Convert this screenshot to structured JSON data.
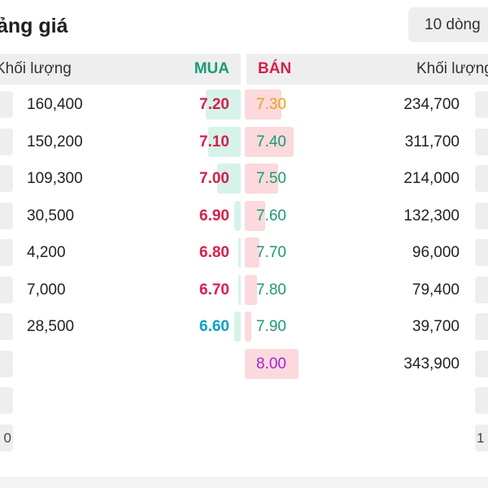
{
  "title": "ảng giá",
  "rows_selector": {
    "label": "10 dòng"
  },
  "header": {
    "bid_volume": "Khối lượng",
    "bid": "MUA",
    "ask": "BÁN",
    "ask_volume": "Khối lượng"
  },
  "colors": {
    "ceiling": "#a326d6",
    "up": "#1a9b73",
    "down": "#d81e4a",
    "reference": "#e8a317",
    "floor": "#0aa0c8"
  },
  "bids": [
    {
      "volume": "160,400",
      "price": "7.20",
      "level": "down",
      "depth": 0.465
    },
    {
      "volume": "150,200",
      "price": "7.10",
      "level": "down",
      "depth": 0.436
    },
    {
      "volume": "109,300",
      "price": "7.00",
      "level": "down",
      "depth": 0.317
    },
    {
      "volume": "30,500",
      "price": "6.90",
      "level": "down",
      "depth": 0.089
    },
    {
      "volume": "4,200",
      "price": "6.80",
      "level": "down",
      "depth": 0.012
    },
    {
      "volume": "7,000",
      "price": "6.70",
      "level": "down",
      "depth": 0.02
    },
    {
      "volume": "28,500",
      "price": "6.60",
      "level": "floor",
      "depth": 0.083
    }
  ],
  "asks": [
    {
      "volume": "234,700",
      "price": "7.30",
      "level": "reference",
      "depth": 0.682
    },
    {
      "volume": "311,700",
      "price": "7.40",
      "level": "up",
      "depth": 0.906
    },
    {
      "volume": "214,000",
      "price": "7.50",
      "level": "up",
      "depth": 0.622
    },
    {
      "volume": "132,300",
      "price": "7.60",
      "level": "up",
      "depth": 0.385
    },
    {
      "volume": "96,000",
      "price": "7.70",
      "level": "up",
      "depth": 0.279
    },
    {
      "volume": "79,400",
      "price": "7.80",
      "level": "up",
      "depth": 0.231
    },
    {
      "volume": "39,700",
      "price": "7.90",
      "level": "up",
      "depth": 0.115
    },
    {
      "volume": "343,900",
      "price": "8.00",
      "level": "ceiling",
      "depth": 1.0
    }
  ],
  "edge_cells": {
    "left": [
      "",
      "",
      "",
      "",
      "",
      "",
      "",
      "",
      "",
      "0"
    ],
    "right": [
      "",
      "",
      "",
      "",
      "",
      "",
      "",
      "",
      "",
      "1"
    ]
  }
}
